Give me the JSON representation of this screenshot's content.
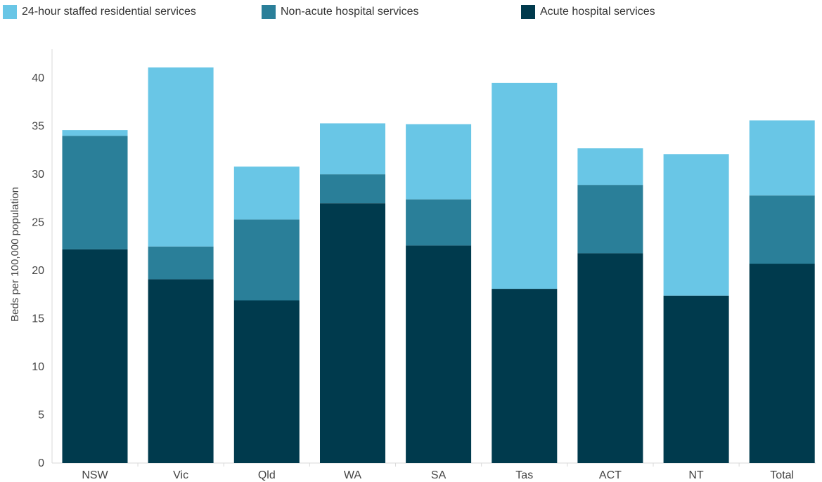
{
  "chart_data": {
    "type": "bar",
    "stacked": true,
    "title": "",
    "xlabel": "",
    "ylabel": "Beds per 100,000 population",
    "ylim": [
      0,
      43
    ],
    "yticks": [
      0,
      5,
      10,
      15,
      20,
      25,
      30,
      35,
      40
    ],
    "grid": false,
    "legend": "top",
    "categories": [
      "NSW",
      "Vic",
      "Qld",
      "WA",
      "SA",
      "Tas",
      "ACT",
      "NT",
      "Total"
    ],
    "series": [
      {
        "name": "Acute hospital services",
        "color": "#003a4d",
        "values": [
          22.2,
          19.1,
          16.9,
          27.0,
          22.6,
          18.1,
          21.8,
          17.4,
          20.7
        ]
      },
      {
        "name": "Non-acute hospital services",
        "color": "#2a7f99",
        "values": [
          11.8,
          3.4,
          8.4,
          3.0,
          4.8,
          0,
          7.1,
          0,
          7.1
        ]
      },
      {
        "name": "24-hour staffed residential services",
        "color": "#69c6e6",
        "values": [
          0.6,
          18.6,
          5.5,
          5.3,
          7.8,
          21.4,
          3.8,
          14.7,
          7.8
        ]
      }
    ],
    "legend_order": [
      2,
      1,
      0
    ]
  }
}
